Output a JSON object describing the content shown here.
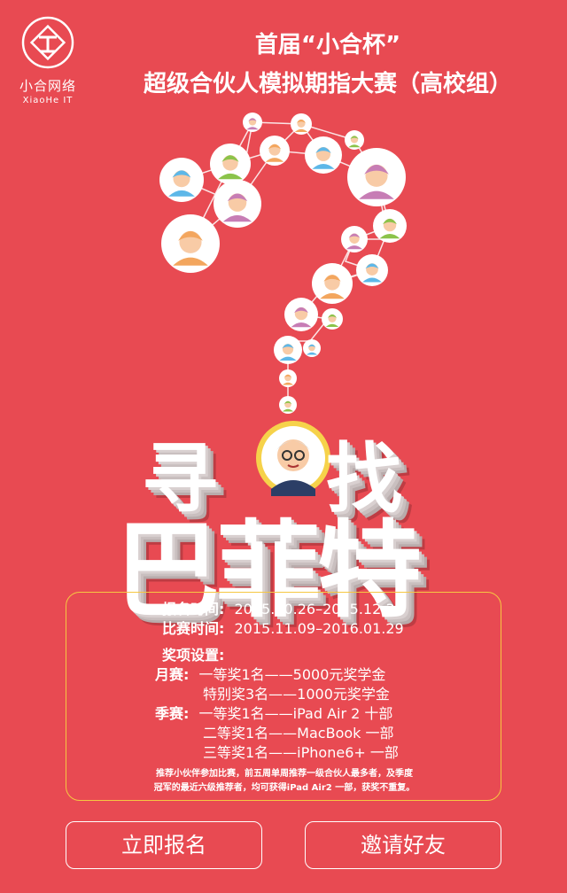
{
  "logo": {
    "name": "小合网络",
    "sub": "XiaoHe IT"
  },
  "title": {
    "line1": "首届“小合杯”",
    "line2": "超级合伙人模拟期指大赛（高校组）"
  },
  "headline": {
    "char1": "寻",
    "char2": "找",
    "name": "巴菲特"
  },
  "info": {
    "signup_label": "报名时间:",
    "signup_value": "2015.10.26–2015.12.31",
    "contest_label": "比赛时间:",
    "contest_value": "2015.11.09–2016.01.29",
    "prizes_label": "奖项设置:",
    "monthly_label": "月赛:",
    "monthly_1": "一等奖1名——5000元奖学金",
    "monthly_2": "特别奖3名——1000元奖学金",
    "season_label": "季赛:",
    "season_1": "一等奖1名——iPad Air 2 十部",
    "season_2": "二等奖1名——MacBook 一部",
    "season_3": "三等奖1名——iPhone6+ 一部",
    "note_1": "推荐小伙伴参加比赛，前五周单周推荐一级合伙人最多者，及季度",
    "note_2": "冠军的最近六级推荐者，均可获得iPad Air2      一部，获奖不重复。"
  },
  "buttons": {
    "signup": "立即报名",
    "invite": "邀请好友"
  },
  "colors": {
    "background": "#E84A52",
    "border_gold": "#F6C742",
    "avatar_bg": "#ffffff"
  }
}
